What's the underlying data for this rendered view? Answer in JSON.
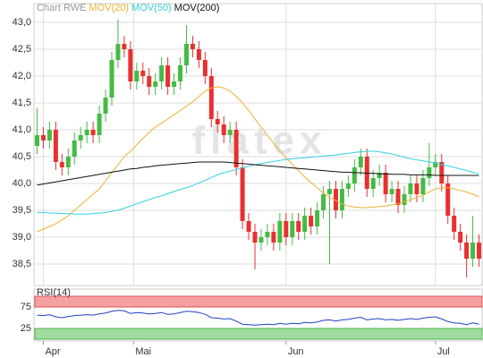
{
  "chart_data": [
    {
      "type": "candlestick",
      "title": "Chart RWE",
      "watermark": "flatex",
      "grid": true,
      "up_color": "#44bb44",
      "down_color": "#e83030",
      "title_color": "#999999",
      "xlim": [
        -0.5,
        71.5
      ],
      "xticks": [
        {
          "value": 1,
          "label": "Apr"
        },
        {
          "value": 15.5,
          "label": "Mai"
        },
        {
          "value": 40,
          "label": "Jun"
        },
        {
          "value": 64,
          "label": "Jul"
        }
      ],
      "ylim": [
        38.1,
        43.35
      ],
      "yticks": [
        {
          "value": 38.5,
          "label": "38,5"
        },
        {
          "value": 39,
          "label": "39,0"
        },
        {
          "value": 39.5,
          "label": "39,5"
        },
        {
          "value": 40,
          "label": "40,0"
        },
        {
          "value": 40.5,
          "label": "40,5"
        },
        {
          "value": 41,
          "label": "41,0"
        },
        {
          "value": 41.5,
          "label": "41,5"
        },
        {
          "value": 42,
          "label": "42,0"
        },
        {
          "value": 42.5,
          "label": "42,5"
        },
        {
          "value": 43,
          "label": "43,0"
        }
      ],
      "open": [
        40.7,
        40.9,
        40.8,
        41.0,
        40.4,
        40.3,
        40.5,
        40.8,
        40.9,
        41.0,
        40.9,
        41.3,
        41.6,
        42.3,
        42.6,
        42.5,
        41.9,
        42.1,
        42.0,
        41.8,
        41.9,
        42.2,
        41.8,
        41.9,
        42.2,
        42.6,
        42.5,
        42.3,
        42.0,
        41.2,
        41.1,
        40.9,
        41.0,
        40.3,
        39.3,
        39.1,
        38.9,
        39.0,
        39.1,
        38.9,
        39.3,
        39.0,
        39.3,
        39.1,
        39.4,
        39.2,
        39.5,
        39.8,
        39.9,
        39.5,
        39.9,
        40.0,
        40.3,
        40.5,
        39.9,
        40.1,
        40.2,
        39.8,
        39.9,
        39.6,
        39.8,
        40.0,
        39.8,
        40.1,
        40.3,
        40.4,
        40.0,
        39.4,
        39.1,
        38.9,
        38.6,
        38.9
      ],
      "high": [
        41.4,
        41.05,
        41.15,
        41.15,
        40.55,
        40.65,
        40.95,
        41.05,
        41.15,
        41.15,
        41.45,
        41.75,
        42.45,
        43.05,
        42.75,
        42.65,
        42.25,
        42.25,
        42.15,
        42.05,
        42.35,
        42.35,
        42.05,
        42.35,
        42.95,
        42.75,
        42.65,
        42.45,
        42.15,
        41.35,
        41.25,
        41.15,
        41.15,
        40.45,
        39.45,
        39.25,
        39.15,
        39.25,
        39.25,
        39.45,
        39.45,
        39.45,
        39.45,
        39.55,
        39.55,
        39.65,
        39.95,
        40.05,
        40.05,
        40.05,
        40.15,
        40.45,
        40.65,
        40.65,
        40.25,
        40.35,
        40.35,
        40.05,
        40.05,
        39.95,
        40.15,
        40.15,
        40.25,
        40.75,
        40.55,
        40.55,
        40.15,
        39.55,
        39.25,
        39.05,
        39.4,
        39.05
      ],
      "low": [
        40.55,
        40.65,
        40.65,
        40.25,
        40.15,
        40.15,
        40.35,
        40.65,
        40.75,
        40.75,
        40.75,
        41.15,
        41.45,
        42.15,
        42.35,
        41.75,
        41.75,
        41.85,
        41.65,
        41.65,
        41.75,
        41.65,
        41.65,
        41.75,
        42.05,
        42.35,
        42.15,
        41.85,
        41.05,
        40.95,
        40.75,
        40.75,
        40.15,
        39.15,
        38.95,
        38.4,
        38.75,
        38.85,
        38.75,
        38.75,
        38.85,
        38.85,
        38.95,
        38.95,
        39.05,
        39.05,
        39.35,
        38.5,
        39.35,
        39.35,
        39.75,
        39.85,
        40.15,
        39.75,
        39.75,
        39.95,
        39.65,
        39.65,
        39.45,
        39.45,
        39.65,
        39.65,
        39.65,
        39.95,
        40.15,
        39.85,
        39.25,
        38.95,
        38.75,
        38.25,
        38.45,
        38.45
      ],
      "close": [
        40.9,
        40.8,
        41.0,
        40.4,
        40.3,
        40.5,
        40.8,
        40.9,
        41.0,
        40.9,
        41.3,
        41.6,
        42.3,
        42.6,
        42.5,
        41.9,
        42.1,
        42.0,
        41.8,
        41.9,
        42.2,
        41.8,
        41.9,
        42.2,
        42.6,
        42.5,
        42.3,
        42.0,
        41.2,
        41.1,
        40.9,
        41.0,
        40.3,
        39.3,
        39.1,
        38.9,
        39.0,
        39.1,
        38.9,
        39.3,
        39.0,
        39.3,
        39.1,
        39.4,
        39.2,
        39.5,
        39.8,
        39.9,
        39.5,
        39.9,
        40.0,
        40.3,
        40.5,
        39.9,
        40.1,
        40.2,
        39.8,
        39.9,
        39.6,
        39.8,
        40.0,
        39.8,
        40.1,
        40.3,
        40.4,
        40.0,
        39.4,
        39.1,
        38.9,
        38.6,
        38.9,
        38.6
      ],
      "series": [
        {
          "name": "MOV(20)",
          "color": "#f0b030",
          "values": [
            39.1,
            39.15,
            39.2,
            39.25,
            39.32,
            39.4,
            39.5,
            39.6,
            39.7,
            39.8,
            39.9,
            40.05,
            40.2,
            40.35,
            40.5,
            40.6,
            40.72,
            40.84,
            40.95,
            41.05,
            41.12,
            41.2,
            41.28,
            41.36,
            41.44,
            41.52,
            41.62,
            41.72,
            41.78,
            41.8,
            41.78,
            41.72,
            41.62,
            41.5,
            41.36,
            41.2,
            41.05,
            40.9,
            40.75,
            40.6,
            40.48,
            40.36,
            40.24,
            40.12,
            40.02,
            39.92,
            39.82,
            39.74,
            39.68,
            39.62,
            39.58,
            39.56,
            39.55,
            39.55,
            39.56,
            39.57,
            39.58,
            39.6,
            39.62,
            39.66,
            39.7,
            39.74,
            39.78,
            39.84,
            39.9,
            39.92,
            39.92,
            39.9,
            39.87,
            39.84,
            39.8,
            39.75
          ]
        },
        {
          "name": "MOV(50)",
          "color": "#30d0e0",
          "values": [
            39.46,
            39.46,
            39.45,
            39.45,
            39.44,
            39.44,
            39.43,
            39.43,
            39.43,
            39.44,
            39.45,
            39.46,
            39.48,
            39.5,
            39.54,
            39.58,
            39.62,
            39.66,
            39.7,
            39.74,
            39.77,
            39.81,
            39.85,
            39.89,
            39.92,
            39.96,
            40.01,
            40.06,
            40.11,
            40.16,
            40.2,
            40.23,
            40.26,
            40.29,
            40.32,
            40.35,
            40.37,
            40.39,
            40.41,
            40.43,
            40.45,
            40.46,
            40.47,
            40.48,
            40.49,
            40.5,
            40.51,
            40.52,
            40.53,
            40.55,
            40.56,
            40.58,
            40.59,
            40.6,
            40.6,
            40.59,
            40.57,
            40.55,
            40.52,
            40.49,
            40.46,
            40.44,
            40.42,
            40.4,
            40.38,
            40.35,
            40.33,
            40.3,
            40.27,
            40.24,
            40.21,
            40.18
          ]
        },
        {
          "name": "MOV(200)",
          "color": "#111111",
          "values": [
            39.97,
            39.99,
            40.01,
            40.03,
            40.05,
            40.07,
            40.09,
            40.11,
            40.13,
            40.15,
            40.17,
            40.19,
            40.21,
            40.23,
            40.25,
            40.27,
            40.28,
            40.3,
            40.31,
            40.33,
            40.34,
            40.35,
            40.36,
            40.37,
            40.38,
            40.39,
            40.4,
            40.4,
            40.4,
            40.4,
            40.4,
            40.39,
            40.38,
            40.37,
            40.36,
            40.35,
            40.34,
            40.33,
            40.32,
            40.31,
            40.3,
            40.29,
            40.28,
            40.27,
            40.26,
            40.25,
            40.24,
            40.23,
            40.22,
            40.21,
            40.21,
            40.2,
            40.2,
            40.19,
            40.19,
            40.18,
            40.18,
            40.17,
            40.17,
            40.17,
            40.16,
            40.16,
            40.16,
            40.16,
            40.15,
            40.15,
            40.15,
            40.15,
            40.15,
            40.15,
            40.15,
            40.15
          ]
        }
      ]
    },
    {
      "type": "line",
      "title": "RSI(14)",
      "xlim": [
        -0.5,
        71.5
      ],
      "ylim": [
        0,
        100
      ],
      "yticks": [
        25,
        75
      ],
      "overbought_color": "#f4a0a0",
      "oversold_color": "#a0dca0",
      "series": [
        {
          "color": "#2040c0",
          "values": [
            56,
            55,
            57,
            52,
            50,
            53,
            55,
            56,
            57,
            56,
            59,
            61,
            65,
            67,
            66,
            60,
            62,
            61,
            59,
            60,
            62,
            58,
            59,
            62,
            65,
            64,
            62,
            58,
            50,
            49,
            47,
            48,
            42,
            35,
            34,
            33,
            34,
            35,
            34,
            37,
            35,
            37,
            36,
            39,
            38,
            40,
            44,
            45,
            42,
            45,
            46,
            49,
            51,
            45,
            47,
            48,
            45,
            46,
            44,
            46,
            48,
            46,
            49,
            51,
            52,
            47,
            41,
            38,
            37,
            34,
            38,
            35
          ]
        }
      ]
    }
  ]
}
